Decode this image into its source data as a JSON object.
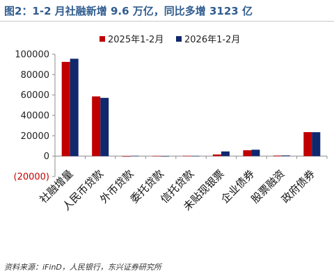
{
  "header": {
    "title": "图2：1-2 月社融新增 9.6 万亿，同比多增 3123 亿"
  },
  "footer": {
    "source": "资料来源：iFinD，人民银行，东兴证券研究所"
  },
  "chart_data": {
    "type": "bar",
    "categories": [
      "社融增量",
      "人民币贷款",
      "外币贷款",
      "委托贷款",
      "信托贷款",
      "未贴现银票",
      "企业债券",
      "股票融资",
      "政府债券"
    ],
    "series": [
      {
        "name": "2025年1-2月",
        "color": "#c00000",
        "values": [
          92500,
          58600,
          -500,
          100,
          200,
          1600,
          5800,
          600,
          23600
        ]
      },
      {
        "name": "2026年1-2月",
        "color": "#10286e",
        "values": [
          95600,
          57200,
          200,
          0,
          100,
          4600,
          6300,
          700,
          23500
        ]
      }
    ],
    "ylim": [
      -20000,
      100000
    ],
    "yticks": [
      -20000,
      0,
      20000,
      40000,
      60000,
      80000,
      100000
    ],
    "ytick_labels": [
      "(20000)",
      "0",
      "20000",
      "40000",
      "60000",
      "80000",
      "100000"
    ],
    "negative_tick_color": "#c00000",
    "legend_position": "top",
    "grid": false
  }
}
